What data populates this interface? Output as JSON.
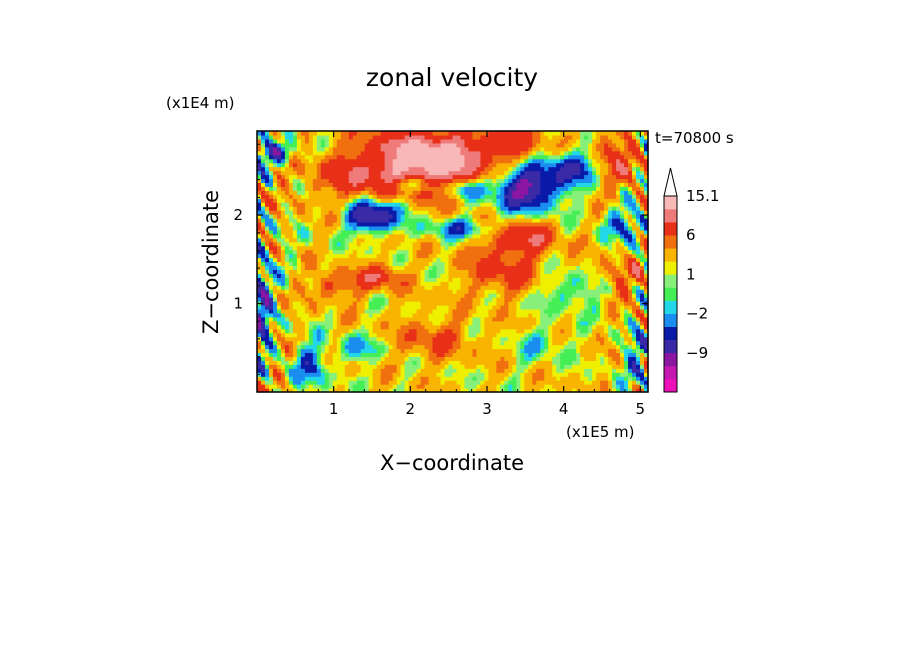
{
  "chart_data": {
    "type": "heatmap",
    "title": "zonal velocity",
    "xlabel": "X−coordinate",
    "ylabel": "Z−coordinate",
    "x_unit": "(x1E5 m)",
    "y_unit": "(x1E4 m)",
    "time_label": "t=70800 s",
    "xlim": [
      0.0,
      5.1
    ],
    "ylim": [
      0.0,
      2.95
    ],
    "x_ticks": [
      1,
      2,
      3,
      4,
      5
    ],
    "y_ticks": [
      1,
      2
    ],
    "x_tick_labels": [
      "1",
      "2",
      "3",
      "4",
      "5"
    ],
    "y_tick_labels": [
      "1",
      "2"
    ],
    "colorbar": {
      "levels": [
        -15,
        -12,
        -9,
        -6,
        -4,
        -2,
        -1,
        0,
        1,
        2,
        4,
        6,
        9,
        12,
        15.1
      ],
      "colors": [
        "#ee11bb",
        "#c418b0",
        "#8a16a2",
        "#3a2aa6",
        "#0a1aa8",
        "#1a8ef0",
        "#22d8e8",
        "#44ee55",
        "#88f07a",
        "#eef000",
        "#f8b400",
        "#f07010",
        "#e83018",
        "#ee7a7a",
        "#f8b8b8"
      ],
      "extend_max_arrow": true,
      "labels": [
        {
          "value": 15.1,
          "text": "15.1"
        },
        {
          "value": 6,
          "text": "6"
        },
        {
          "value": 1,
          "text": "1"
        },
        {
          "value": -2,
          "text": "−2"
        },
        {
          "value": -9,
          "text": "−9"
        }
      ]
    },
    "field": {
      "description": "gridded zonal velocity in m/s over x (1E5 m) and z (1E4 m)",
      "base": 2.0,
      "blobs": [
        [
          1.7,
          2.45,
          0.9,
          0.35,
          8
        ],
        [
          2.5,
          2.6,
          0.6,
          0.3,
          8
        ],
        [
          3.3,
          2.8,
          0.5,
          0.2,
          5
        ],
        [
          4.6,
          2.6,
          0.4,
          0.3,
          7
        ],
        [
          2.1,
          2.8,
          0.6,
          0.2,
          5
        ],
        [
          1.6,
          2.1,
          0.5,
          0.15,
          -6
        ],
        [
          1.5,
          1.95,
          0.3,
          0.15,
          -10
        ],
        [
          2.7,
          1.85,
          0.5,
          0.12,
          -6
        ],
        [
          3.5,
          2.3,
          0.45,
          0.25,
          -12
        ],
        [
          4.2,
          2.55,
          0.4,
          0.2,
          -10
        ],
        [
          0.2,
          2.7,
          0.3,
          0.12,
          -9
        ],
        [
          0.05,
          1.0,
          0.15,
          0.6,
          -8
        ],
        [
          1.0,
          1.2,
          0.3,
          0.15,
          5
        ],
        [
          3.2,
          1.35,
          0.5,
          0.25,
          5
        ],
        [
          3.4,
          1.75,
          0.5,
          0.2,
          7
        ],
        [
          4.1,
          1.15,
          0.4,
          0.2,
          -4
        ],
        [
          4.7,
          1.3,
          0.3,
          0.2,
          4
        ],
        [
          2.3,
          0.6,
          0.5,
          0.25,
          4
        ],
        [
          1.3,
          0.5,
          0.3,
          0.15,
          -4
        ],
        [
          3.7,
          0.55,
          0.3,
          0.2,
          -3
        ],
        [
          0.7,
          0.3,
          0.2,
          0.25,
          -6
        ],
        [
          4.95,
          0.4,
          0.15,
          0.3,
          -5
        ],
        [
          1.6,
          1.3,
          0.3,
          0.15,
          6
        ],
        [
          2.0,
          2.35,
          0.35,
          0.1,
          -7
        ],
        [
          2.7,
          2.3,
          0.25,
          0.12,
          -7
        ],
        [
          4.8,
          1.9,
          0.3,
          0.2,
          -5
        ]
      ]
    }
  }
}
